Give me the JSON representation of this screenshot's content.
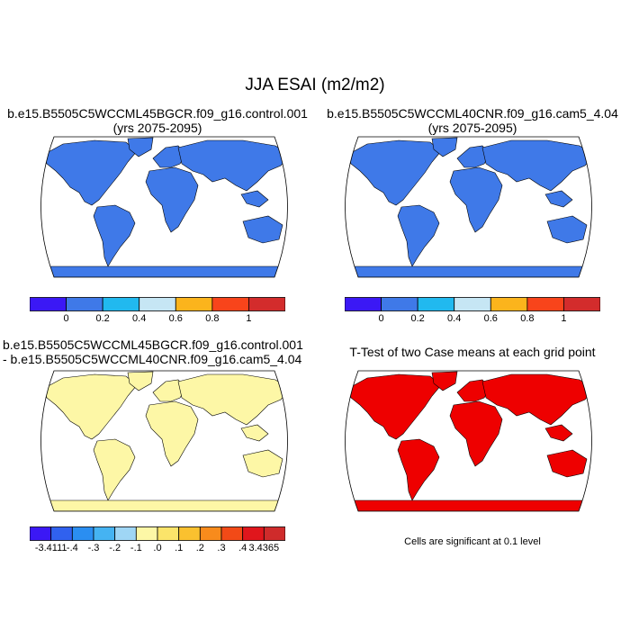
{
  "figure": {
    "title": "JJA ESAI (m2/m2)"
  },
  "panels": [
    {
      "id": "case1",
      "title_lines": [
        "b.e15.B5505C5WCCML45BGCR.f09_g16.control.001",
        "(yrs 2075-2095)"
      ]
    },
    {
      "id": "case2",
      "title_lines": [
        "b.e15.B5505C5WCCML40CNR.f09_g16.cam5_4.04",
        "(yrs 2075-2095)"
      ]
    },
    {
      "id": "difference",
      "title_lines": [
        "b.e15.B5505C5WCCML45BGCR.f09_g16.control.001",
        "- b.e15.B5505C5WCCML40CNR.f09_g16.cam5_4.04"
      ]
    },
    {
      "id": "ttest",
      "title_lines": [
        "T-Test of two Case means at each grid point"
      ],
      "note": "Cells are significant at 0.1 level"
    }
  ],
  "colorbars": {
    "case": {
      "colors": [
        "#3b18f5",
        "#3f79e8",
        "#21b9ef",
        "#c6e6f4",
        "#fbb41c",
        "#f8441b",
        "#d32c2c"
      ],
      "labels": [
        "0",
        "0.2",
        "0.4",
        "0.6",
        "0.8",
        "1"
      ]
    },
    "difference": {
      "colors": [
        "#3b18f5",
        "#3061ef",
        "#2a8ef1",
        "#45b3f2",
        "#9fd6f5",
        "#fdf7a6",
        "#fbe46a",
        "#fac12f",
        "#f88b1c",
        "#f24a17",
        "#e0161c",
        "#cf2b2b"
      ],
      "labels": [
        "-3.4111",
        "-.4",
        "-.3",
        "-.2",
        "-.1",
        ".0",
        ".1",
        ".2",
        ".3",
        ".4",
        "3.4365"
      ]
    }
  },
  "map_colors": {
    "land_case": "#3f79e8",
    "land_diff": "#fdf7a6",
    "significant": "#ee0000",
    "ocean": "#ffffff",
    "coast": "#000000"
  }
}
